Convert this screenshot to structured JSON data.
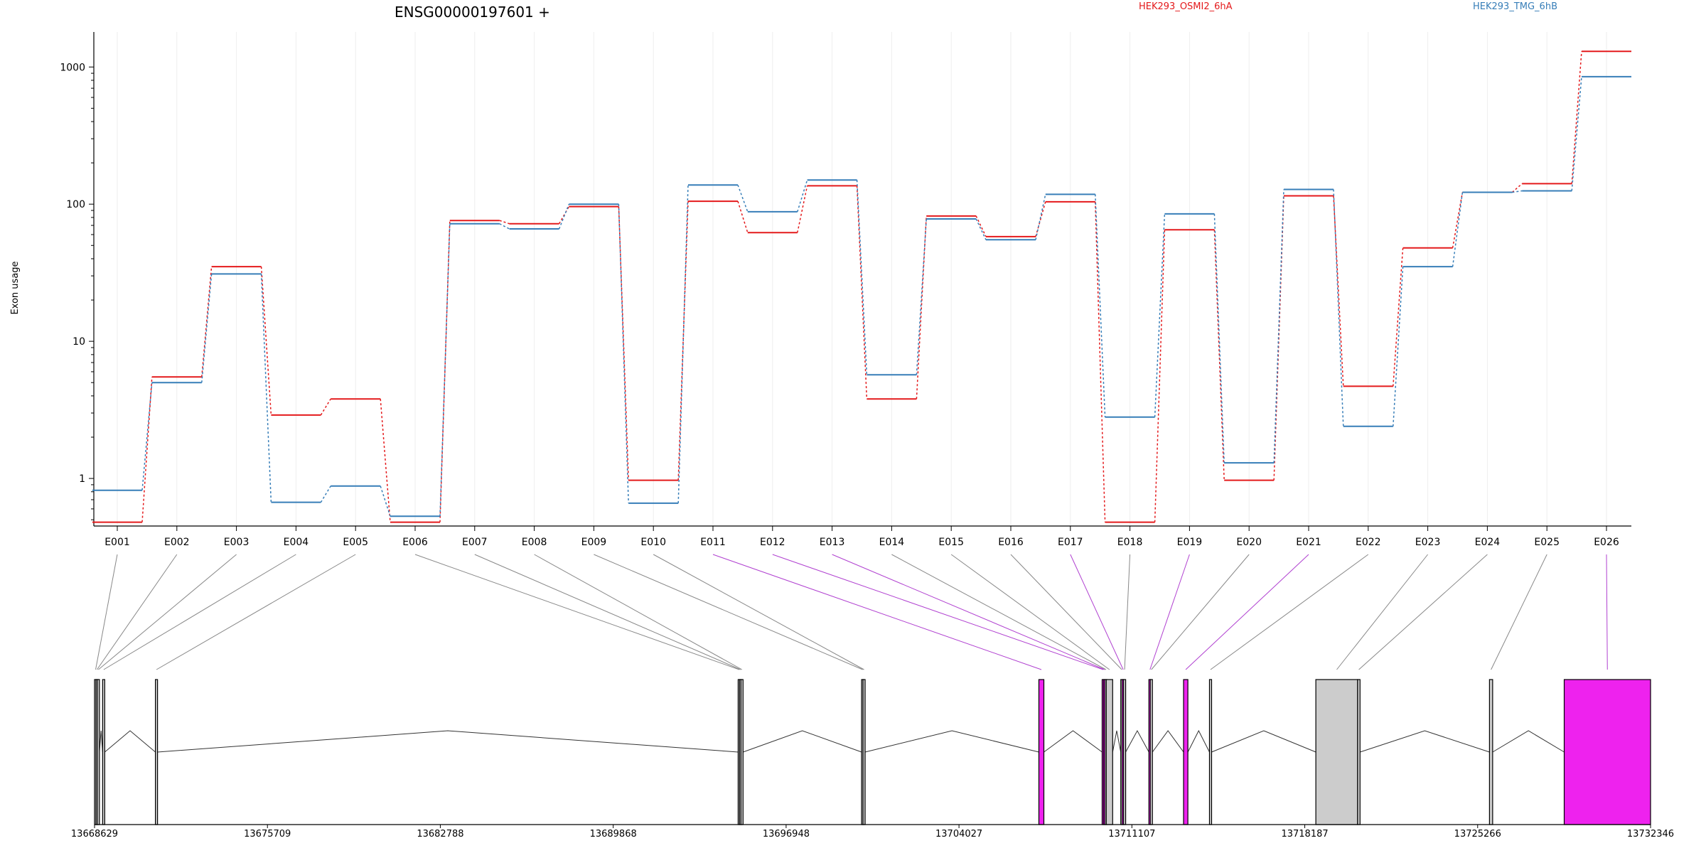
{
  "chart_data": {
    "type": "line",
    "title": "ENSG00000197601 +",
    "ylabel": "Exon usage",
    "y_scale": "log",
    "ylim": [
      0.45,
      1800
    ],
    "y_ticks": [
      {
        "value": 1,
        "label": "1"
      },
      {
        "value": 10,
        "label": "10"
      },
      {
        "value": 100,
        "label": "100"
      },
      {
        "value": 1000,
        "label": "1000"
      }
    ],
    "legend_placement": "top",
    "categories": [
      "E001",
      "E002",
      "E003",
      "E004",
      "E005",
      "E006",
      "E007",
      "E008",
      "E009",
      "E010",
      "E011",
      "E012",
      "E013",
      "E014",
      "E015",
      "E016",
      "E017",
      "E018",
      "E019",
      "E020",
      "E021",
      "E022",
      "E023",
      "E024",
      "E025",
      "E026"
    ],
    "series": [
      {
        "name": "HEK293_OSMI2_6hA",
        "color": "#e41a1c",
        "values": [
          0.48,
          5.5,
          35,
          2.9,
          3.8,
          0.48,
          76,
          72,
          96,
          0.97,
          105,
          62,
          136,
          3.8,
          82,
          58,
          104,
          0.48,
          65,
          0.97,
          115,
          4.7,
          48,
          122,
          141,
          1300
        ]
      },
      {
        "name": "HEK293_TMG_6hB",
        "color": "#377eb8",
        "values": [
          0.82,
          5.0,
          31,
          0.67,
          0.88,
          0.53,
          72,
          66,
          100,
          0.66,
          138,
          88,
          150,
          5.7,
          78,
          55,
          118,
          2.8,
          85,
          1.3,
          128,
          2.4,
          35,
          122,
          125,
          850
        ]
      }
    ],
    "gene_model": {
      "genomic_ticks": [
        {
          "value": 13668629,
          "label": "13668629"
        },
        {
          "value": 13675709,
          "label": "13675709"
        },
        {
          "value": 13682788,
          "label": "13682788"
        },
        {
          "value": 13689868,
          "label": "13689868"
        },
        {
          "value": 13696948,
          "label": "13696948"
        },
        {
          "value": 13704027,
          "label": "13704027"
        },
        {
          "value": 13711107,
          "label": "13711107"
        },
        {
          "value": 13718187,
          "label": "13718187"
        },
        {
          "value": 13725266,
          "label": "13725266"
        },
        {
          "value": 13732346,
          "label": "13732346"
        }
      ],
      "exons": [
        {
          "id": "E001",
          "start": 13668629,
          "end": 13668686,
          "highlight": false
        },
        {
          "id": "E002",
          "start": 13668686,
          "end": 13668743,
          "highlight": false
        },
        {
          "id": "E003",
          "start": 13668743,
          "end": 13668800,
          "highlight": false
        },
        {
          "id": "E004",
          "start": 13668960,
          "end": 13669017,
          "highlight": false
        },
        {
          "id": "E005",
          "start": 13671121,
          "end": 13671178,
          "highlight": false
        },
        {
          "id": "E006",
          "start": 13694984,
          "end": 13695041,
          "highlight": false
        },
        {
          "id": "E007",
          "start": 13695041,
          "end": 13695098,
          "highlight": false
        },
        {
          "id": "E008",
          "start": 13695098,
          "end": 13695155,
          "highlight": false
        },
        {
          "id": "E009",
          "start": 13700039,
          "end": 13700096,
          "highlight": false
        },
        {
          "id": "E010",
          "start": 13700096,
          "end": 13700153,
          "highlight": false
        },
        {
          "id": "E011",
          "start": 13707298,
          "end": 13707503,
          "highlight": true
        },
        {
          "id": "E012",
          "start": 13709889,
          "end": 13709946,
          "highlight": true
        },
        {
          "id": "E013",
          "start": 13709946,
          "end": 13710003,
          "highlight": true
        },
        {
          "id": "E014",
          "start": 13710003,
          "end": 13710060,
          "highlight": false
        },
        {
          "id": "E015",
          "start": 13710060,
          "end": 13710320,
          "highlight": false
        },
        {
          "id": "E016",
          "start": 13710651,
          "end": 13710708,
          "highlight": false
        },
        {
          "id": "E017",
          "start": 13710708,
          "end": 13710765,
          "highlight": true
        },
        {
          "id": "E018",
          "start": 13710765,
          "end": 13710822,
          "highlight": false
        },
        {
          "id": "E019",
          "start": 13711804,
          "end": 13711861,
          "highlight": true
        },
        {
          "id": "E020",
          "start": 13711861,
          "end": 13711918,
          "highlight": false
        },
        {
          "id": "E021",
          "start": 13713223,
          "end": 13713400,
          "highlight": true
        },
        {
          "id": "E022",
          "start": 13714284,
          "end": 13714344,
          "highlight": false
        },
        {
          "id": "E023",
          "start": 13718640,
          "end": 13720350,
          "highlight": false
        },
        {
          "id": "E024",
          "start": 13720350,
          "end": 13720450,
          "highlight": false
        },
        {
          "id": "E025",
          "start": 13725750,
          "end": 13725880,
          "highlight": false
        },
        {
          "id": "E026",
          "start": 13728810,
          "end": 13732346,
          "highlight": true
        }
      ],
      "colors": {
        "exon": "#cccccc",
        "highlight": "#ee22ee",
        "connector": "#888888",
        "highlight_connector": "#b040d0"
      }
    }
  }
}
